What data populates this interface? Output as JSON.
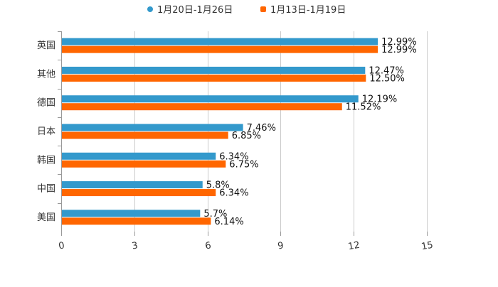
{
  "chart_data": {
    "type": "bar",
    "orientation": "horizontal",
    "title": "",
    "xlabel": "",
    "ylabel": "",
    "categories": [
      "英国",
      "其他",
      "德国",
      "日本",
      "韩国",
      "中国",
      "美国"
    ],
    "series": [
      {
        "name": "1月20日-1月26日",
        "color": "#3399cc",
        "values": [
          12.99,
          12.47,
          12.19,
          7.46,
          6.34,
          5.8,
          5.7
        ],
        "labels": [
          "12.99%",
          "12.47%",
          "12.19%",
          "7.46%",
          "6.34%",
          "5.8%",
          "5.7%"
        ]
      },
      {
        "name": "1月13日-1月19日",
        "color": "#ff6600",
        "values": [
          12.99,
          12.5,
          11.52,
          6.85,
          6.75,
          6.34,
          6.14
        ],
        "labels": [
          "12.99%",
          "12.50%",
          "11.52%",
          "6.85%",
          "6.75%",
          "6.34%",
          "6.14%"
        ]
      }
    ],
    "xlim": [
      0,
      15
    ],
    "xticks": [
      "0",
      "3",
      "6",
      "9",
      "12",
      "15"
    ],
    "grid": true,
    "legend_position": "top-center"
  }
}
